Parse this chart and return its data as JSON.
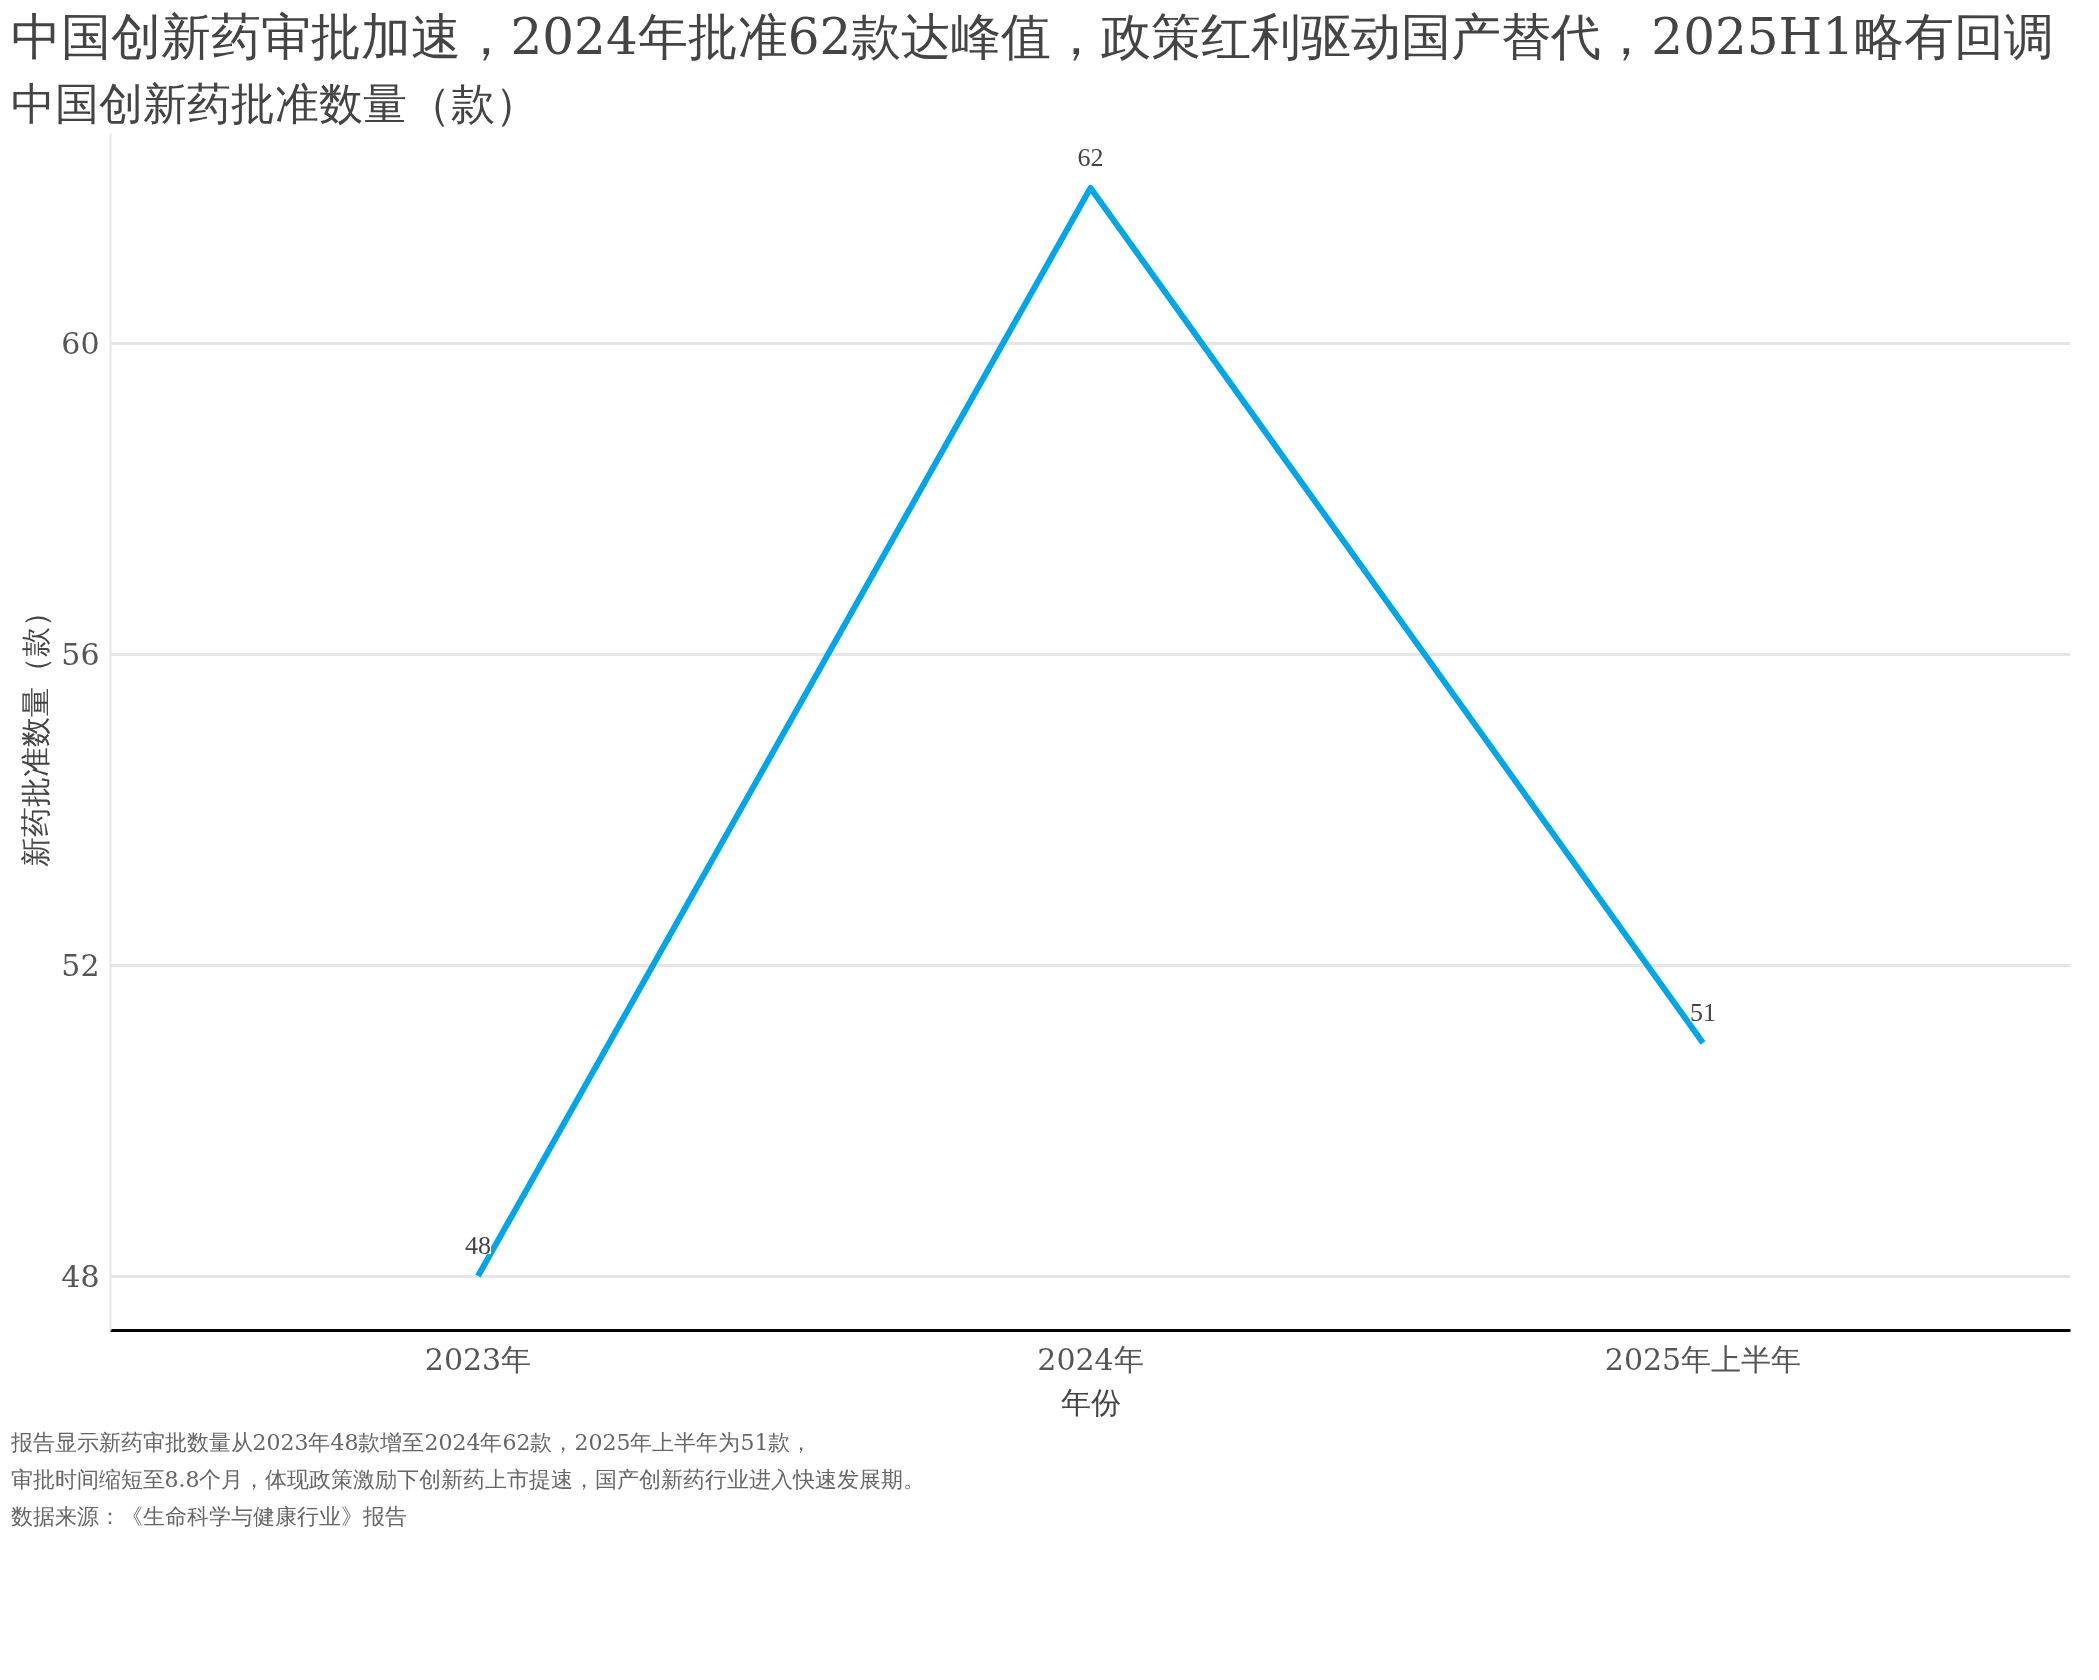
{
  "chart_data": {
    "type": "line",
    "title": "中国创新药审批加速，2024年批准62款达峰值，政策红利驱动国产替代，2025H1略有回调",
    "subtitle": "中国创新药批准数量（款）",
    "xlabel": "年份",
    "ylabel": "新药批准数量（款）",
    "categories": [
      "2023年",
      "2024年",
      "2025年上半年"
    ],
    "series": [
      {
        "color": "#00a6e8",
        "values": [
          48,
          62,
          51
        ]
      }
    ],
    "ylim": [
      47.3,
      62.7
    ],
    "yticks": [
      48,
      52,
      56,
      60
    ],
    "grid": "y",
    "data_labels": true,
    "line_style": "solid",
    "annotations": [
      "报告显示新药审批数量从2023年48款增至2024年62款，2025年上半年为51款，",
      "审批时间缩短至8.8个月，体现政策激励下创新药上市提速，国产创新药行业进入快速发展期。",
      "数据来源：《生命科学与健康行业》报告"
    ]
  }
}
